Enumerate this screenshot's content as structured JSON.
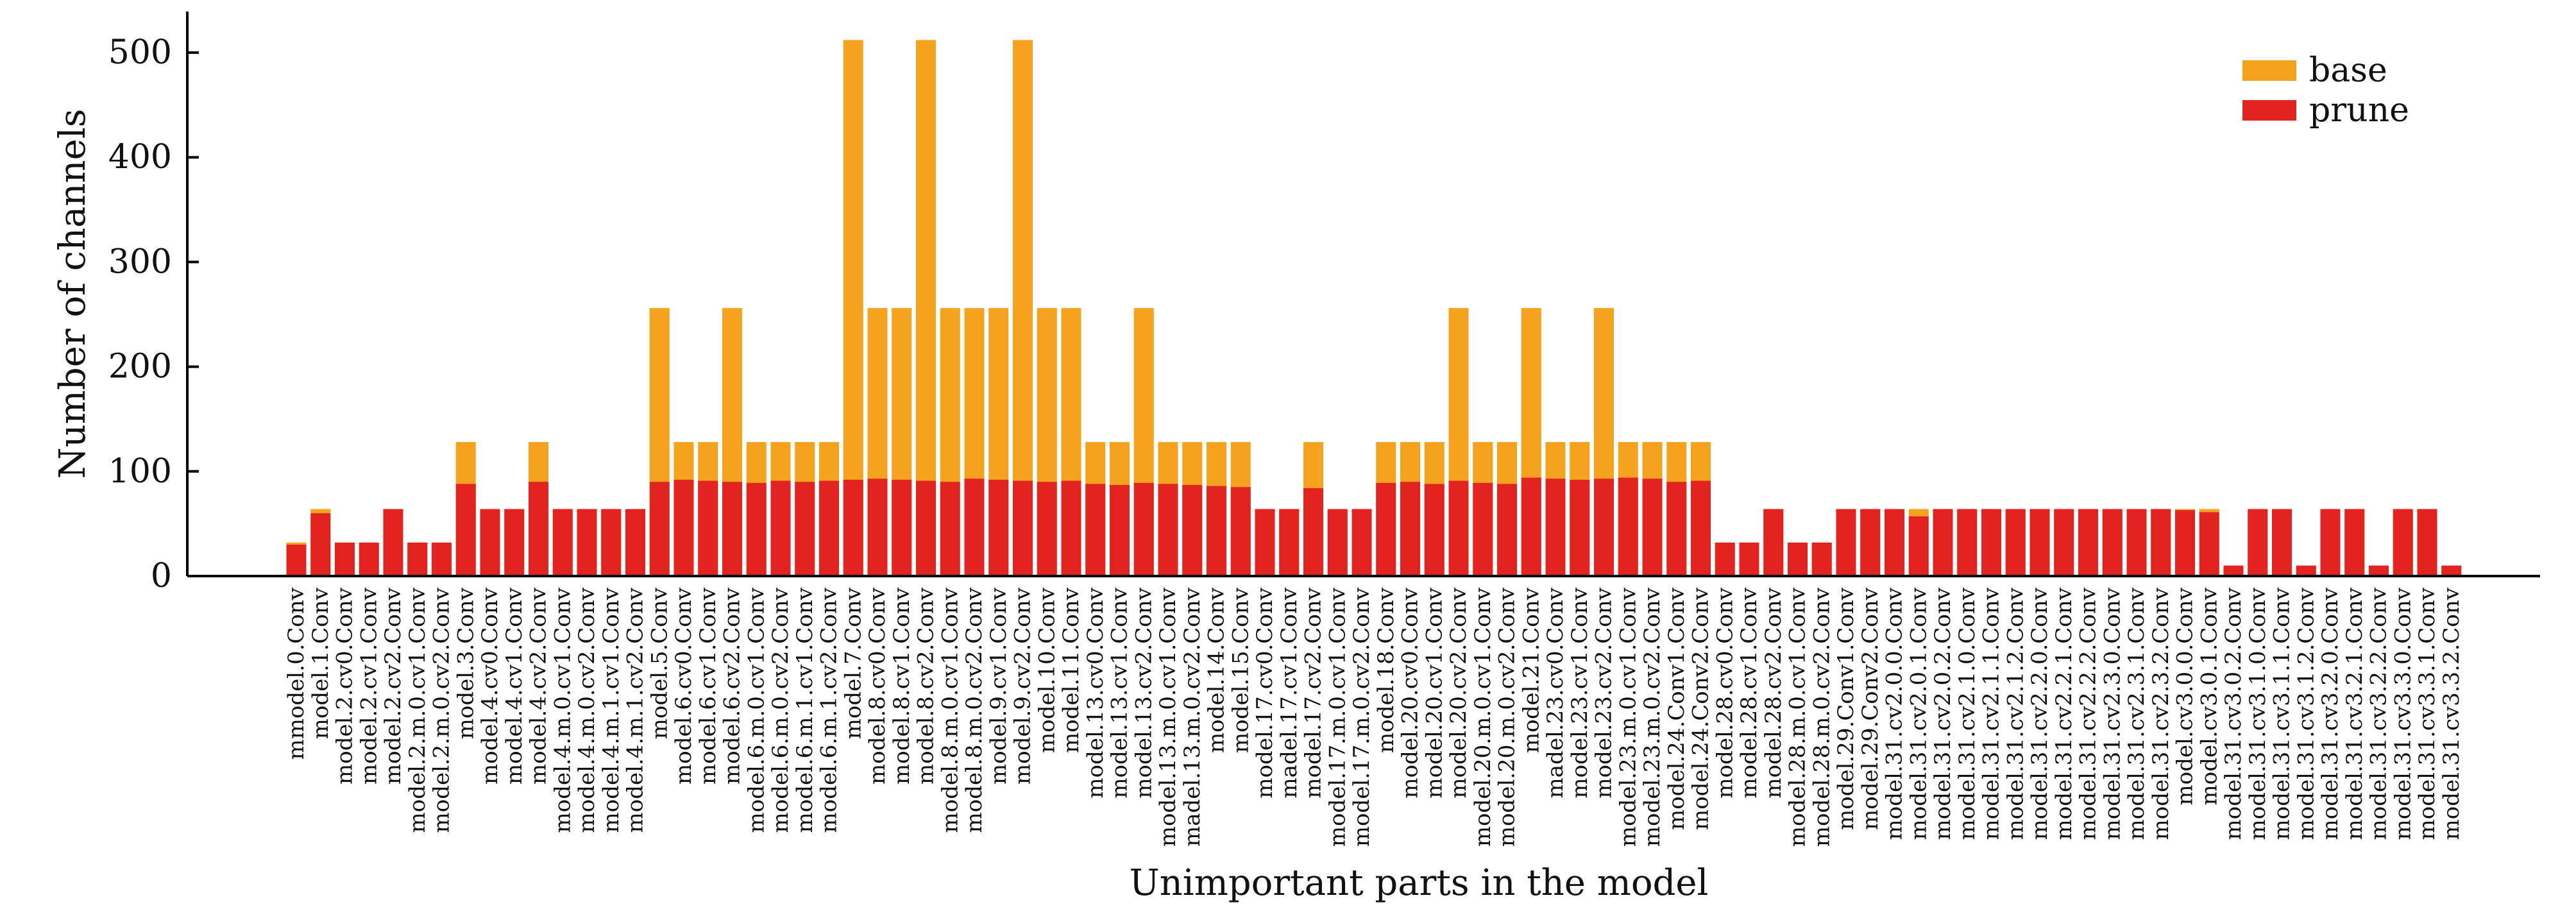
{
  "chart_data": {
    "type": "bar",
    "stacked_overlay": true,
    "xlabel": "Unimportant parts in the model",
    "ylabel": "Number of channels",
    "ylim": [
      0,
      540
    ],
    "yticks": [
      0,
      100,
      200,
      300,
      400,
      500
    ],
    "grid": false,
    "legend_position": "top-right",
    "categories": [
      "mmodel.0.Conv",
      "model.1.Conv",
      "model.2.cv0.Conv",
      "model.2.cv1.Conv",
      "model.2.cv2.Conv",
      "model.2.m.0.cv1.Conv",
      "model.2.m.0.cv2.Conv",
      "model.3.Conv",
      "model.4.cv0.Conv",
      "model.4.cv1.Conv",
      "model.4.cv2.Conv",
      "model.4.m.0.cv1.Conv",
      "model.4.m.0.cv2.Conv",
      "model.4.m.1.cv1.Conv",
      "model.4.m.1.cv2.Conv",
      "model.5.Conv",
      "model.6.cv0.Conv",
      "model.6.cv1.Conv",
      "model.6.cv2.Conv",
      "model.6.m.0.cv1.Conv",
      "model.6.m.0.cv2.Conv",
      "model.6.m.1.cv1.Conv",
      "model.6.m.1.cv2.Conv",
      "model.7.Conv",
      "model.8.cv0.Conv",
      "model.8.cv1.Conv",
      "model.8.cv2.Conv",
      "model.8.m.0.cv1.Conv",
      "model.8.m.0.cv2.Conv",
      "model.9.cv1.Conv",
      "model.9.cv2.Conv",
      "model.10.Conv",
      "model.11.Conv",
      "model.13.cv0.Conv",
      "model.13.cv1.Conv",
      "model.13.cv2.Conv",
      "model.13.m.0.cv1.Conv",
      "madel.13.m.0.cv2.Conv",
      "model.14.Conv",
      "model.15.Conv",
      "model.17.cv0.Conv",
      "madel.17.cv1.Conv",
      "model.17.cv2.Conv",
      "model.17.m.0.cv1.Conv",
      "model.17.m.0.cv2.Conv",
      "model.18.Conv",
      "model.20.cv0.Conv",
      "model.20.cv1.Conv",
      "model.20.cv2.Conv",
      "model.20.m.0.cv1.Conv",
      "model.20.m.0.cv2.Conv",
      "model.21.Conv",
      "madel.23.cv0.Conv",
      "model.23.cv1.Conv",
      "model.23.cv2.Conv",
      "model.23.m.0.cv1.Conv",
      "model.23.m.0.cv2.Conv",
      "model.24.Conv1.Conv",
      "model.24.Conv2.Conv",
      "model.28.cv0.Conv",
      "model.28.cv1.Conv",
      "model.28.cv2.Conv",
      "model.28.m.0.cv1.Conv",
      "model.28.m.0.cv2.Conv",
      "model.29.Conv1.Conv",
      "model.29.Conv2.Conv",
      "model.31.cv2.0.0.Conv",
      "model.31.cv2.0.1.Conv",
      "model.31.cv2.0.2.Conv",
      "model.31.cv2.1.0.Conv",
      "model.31.cv2.1.1.Conv",
      "model.31.cv2.1.2.Conv",
      "model.31.cv2.2.0.Conv",
      "model.31.cv2.2.1.Conv",
      "model.31.cv2.2.2.Conv",
      "model.31.cv2.3.0.Conv",
      "model.31.cv2.3.1.Conv",
      "model.31.cv2.3.2.Conv",
      "model.cv3.0.0.Conv",
      "model.cv3.0.1.Conv",
      "model.31.cv3.0.2.Conv",
      "model.31.cv3.1.0.Conv",
      "model.31.cv3.1.1.Conv",
      "model.31.cv3.1.2.Conv",
      "model.31.cv3.2.0.Conv",
      "model.31.cv3.2.1.Conv",
      "model.31.cv3.2.2.Conv",
      "model.31.cv3.3.0.Conv",
      "model.31.cv3.3.1.Conv",
      "model.31.cv3.3.2.Conv"
    ],
    "series": [
      {
        "name": "base",
        "color": "#F5A31E",
        "values": [
          32,
          64,
          32,
          32,
          64,
          32,
          32,
          128,
          64,
          64,
          128,
          64,
          64,
          64,
          64,
          256,
          128,
          128,
          256,
          128,
          128,
          128,
          128,
          512,
          256,
          256,
          512,
          256,
          256,
          256,
          512,
          256,
          256,
          128,
          128,
          256,
          128,
          128,
          128,
          128,
          64,
          64,
          128,
          64,
          64,
          128,
          128,
          128,
          256,
          128,
          128,
          256,
          128,
          128,
          256,
          128,
          128,
          128,
          128,
          32,
          32,
          64,
          32,
          32,
          64,
          64,
          64,
          64,
          64,
          64,
          64,
          64,
          64,
          64,
          64,
          64,
          64,
          64,
          64,
          64,
          10,
          64,
          64,
          10,
          64,
          64,
          10,
          64,
          64,
          10
        ]
      },
      {
        "name": "prune",
        "color": "#E2231F",
        "values": [
          30,
          60,
          32,
          32,
          64,
          32,
          32,
          88,
          64,
          64,
          90,
          64,
          64,
          64,
          64,
          90,
          92,
          91,
          90,
          89,
          91,
          90,
          91,
          92,
          93,
          92,
          91,
          90,
          93,
          92,
          91,
          90,
          91,
          88,
          87,
          89,
          88,
          87,
          86,
          85,
          64,
          64,
          84,
          64,
          64,
          89,
          90,
          88,
          91,
          89,
          88,
          94,
          93,
          92,
          93,
          94,
          93,
          90,
          91,
          32,
          32,
          64,
          32,
          32,
          64,
          64,
          64,
          57,
          64,
          64,
          64,
          64,
          64,
          64,
          64,
          64,
          64,
          64,
          63,
          61,
          10,
          64,
          64,
          10,
          64,
          64,
          10,
          64,
          64,
          10
        ]
      }
    ]
  }
}
